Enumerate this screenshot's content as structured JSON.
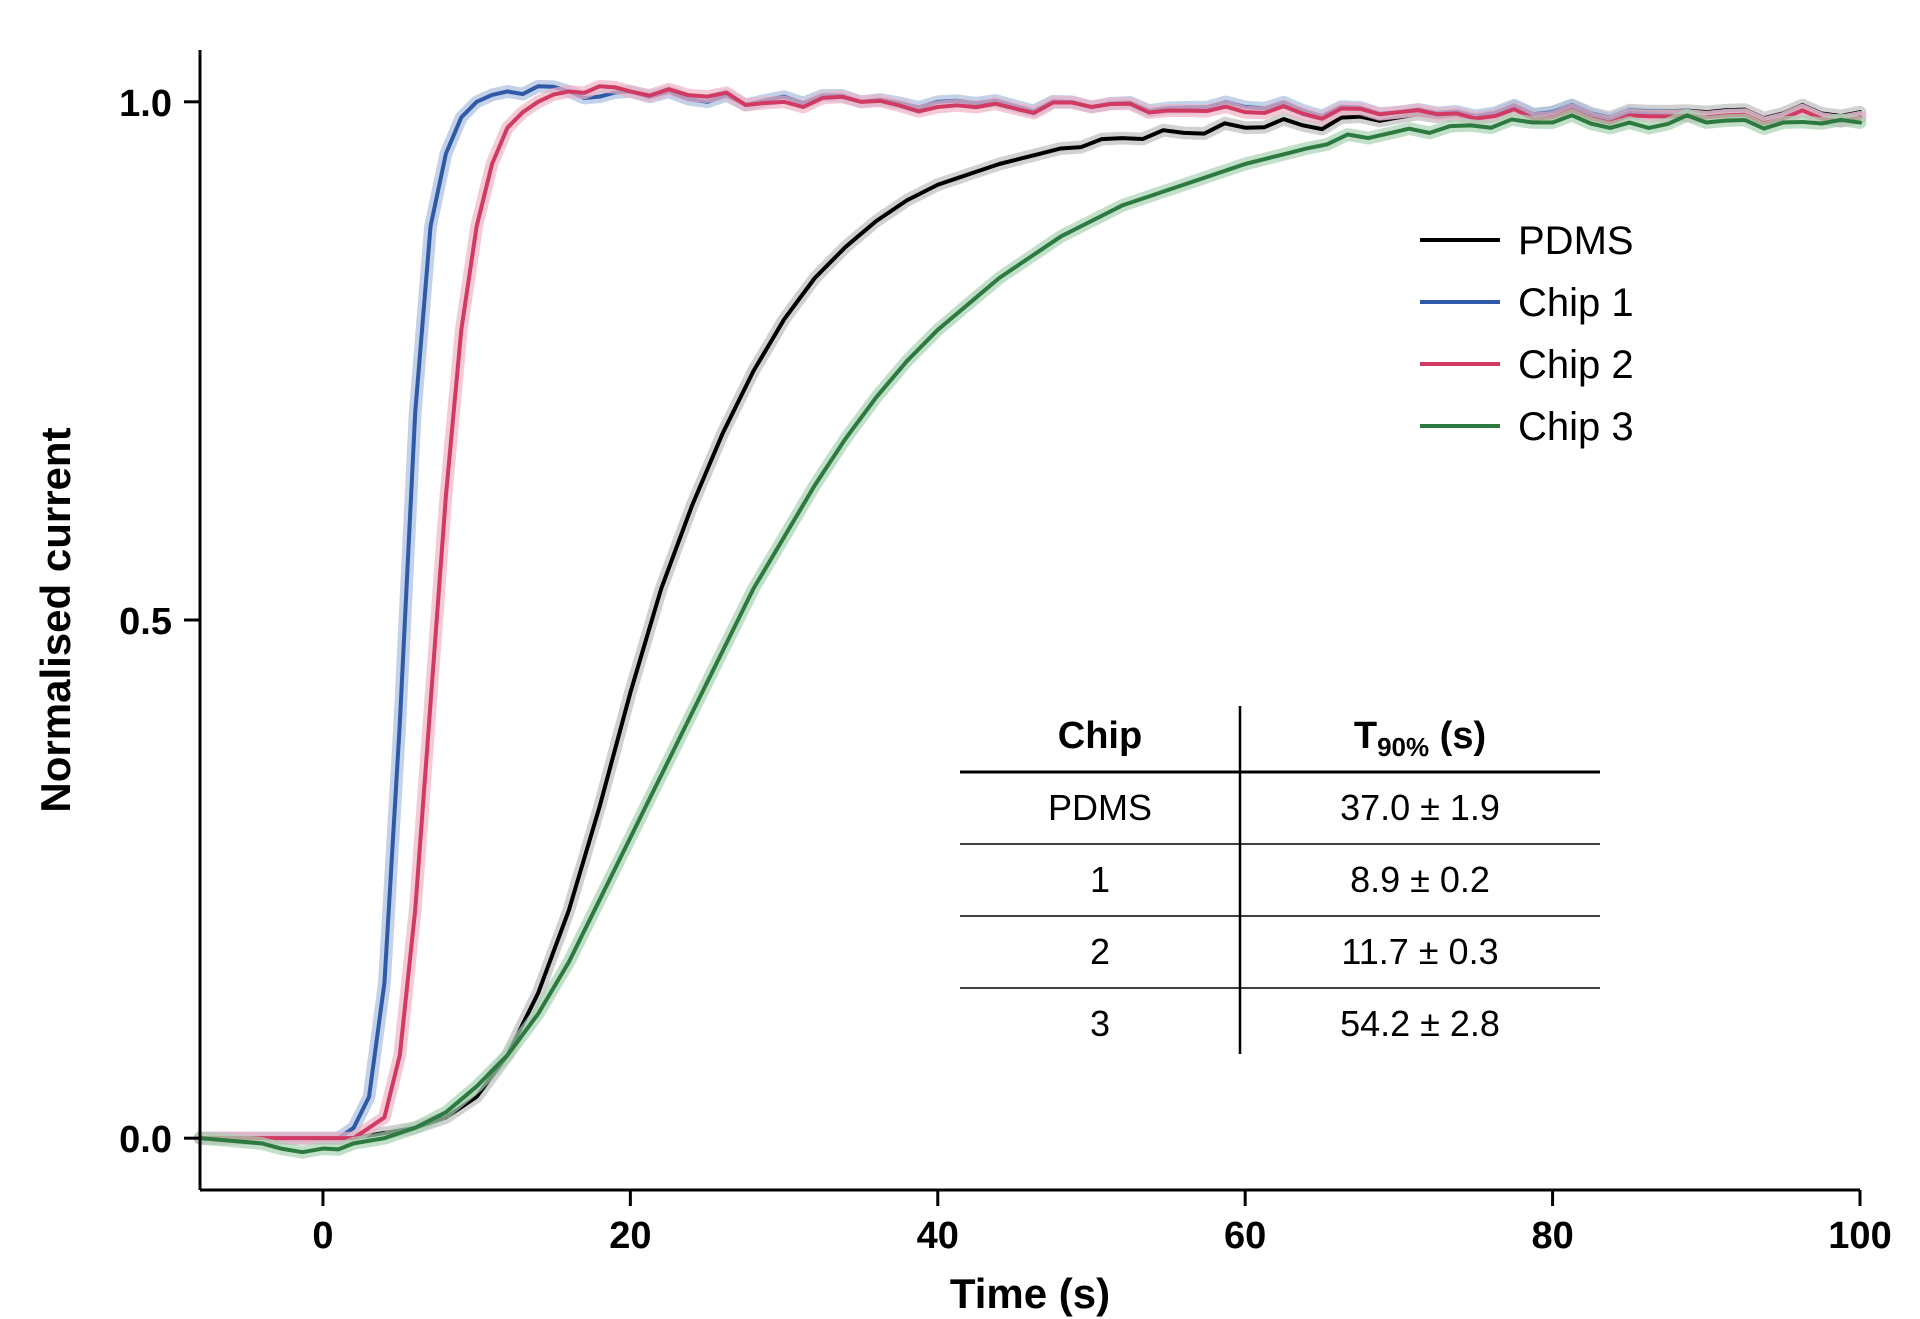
{
  "chart": {
    "type": "line",
    "background_color": "#ffffff",
    "xlabel": "Time (s)",
    "ylabel": "Normalised current",
    "label_fontsize": 42,
    "tick_fontsize": 38,
    "xlim": [
      -8,
      100
    ],
    "ylim": [
      -0.05,
      1.05
    ],
    "xticks": [
      0,
      20,
      40,
      60,
      80,
      100
    ],
    "yticks": [
      0.0,
      0.5,
      1.0
    ],
    "ytick_labels": [
      "0.0",
      "0.5",
      "1.0"
    ],
    "axis_color": "#000000",
    "axis_linewidth": 3,
    "line_width": 4,
    "series": [
      {
        "name": "PDMS",
        "color": "#000000",
        "shadow_color": "#bdbdbd",
        "points": [
          [
            -8,
            0.0
          ],
          [
            -4,
            0.0
          ],
          [
            0,
            0.0
          ],
          [
            2,
            0.0
          ],
          [
            4,
            0.005
          ],
          [
            6,
            0.01
          ],
          [
            8,
            0.02
          ],
          [
            10,
            0.04
          ],
          [
            12,
            0.08
          ],
          [
            14,
            0.14
          ],
          [
            16,
            0.22
          ],
          [
            18,
            0.32
          ],
          [
            20,
            0.43
          ],
          [
            22,
            0.53
          ],
          [
            24,
            0.61
          ],
          [
            26,
            0.68
          ],
          [
            28,
            0.74
          ],
          [
            30,
            0.79
          ],
          [
            32,
            0.83
          ],
          [
            34,
            0.86
          ],
          [
            36,
            0.885
          ],
          [
            38,
            0.905
          ],
          [
            40,
            0.92
          ],
          [
            44,
            0.94
          ],
          [
            48,
            0.955
          ],
          [
            52,
            0.965
          ],
          [
            56,
            0.97
          ],
          [
            60,
            0.975
          ],
          [
            70,
            0.985
          ],
          [
            80,
            0.99
          ],
          [
            90,
            0.99
          ],
          [
            100,
            0.99
          ]
        ]
      },
      {
        "name": "Chip 1",
        "color": "#2e5aa8",
        "shadow_color": "#a9bde0",
        "points": [
          [
            -8,
            0.0
          ],
          [
            -4,
            0.0
          ],
          [
            0,
            0.0
          ],
          [
            1,
            0.0
          ],
          [
            2,
            0.01
          ],
          [
            3,
            0.04
          ],
          [
            4,
            0.15
          ],
          [
            5,
            0.4
          ],
          [
            6,
            0.7
          ],
          [
            7,
            0.88
          ],
          [
            8,
            0.95
          ],
          [
            9,
            0.985
          ],
          [
            10,
            1.0
          ],
          [
            12,
            1.01
          ],
          [
            14,
            1.015
          ],
          [
            16,
            1.01
          ],
          [
            18,
            1.005
          ],
          [
            20,
            1.01
          ],
          [
            25,
            1.0
          ],
          [
            30,
            1.005
          ],
          [
            35,
            1.0
          ],
          [
            40,
            1.0
          ],
          [
            50,
            0.995
          ],
          [
            60,
            0.995
          ],
          [
            70,
            0.99
          ],
          [
            80,
            0.99
          ],
          [
            90,
            0.985
          ],
          [
            100,
            0.985
          ]
        ]
      },
      {
        "name": "Chip 2",
        "color": "#d13a62",
        "shadow_color": "#eeb3c4",
        "points": [
          [
            -8,
            0.0
          ],
          [
            -4,
            0.0
          ],
          [
            0,
            0.0
          ],
          [
            2,
            0.0
          ],
          [
            3,
            0.01
          ],
          [
            4,
            0.02
          ],
          [
            5,
            0.08
          ],
          [
            6,
            0.22
          ],
          [
            7,
            0.42
          ],
          [
            8,
            0.62
          ],
          [
            9,
            0.78
          ],
          [
            10,
            0.88
          ],
          [
            11,
            0.94
          ],
          [
            12,
            0.975
          ],
          [
            13,
            0.99
          ],
          [
            14,
            1.0
          ],
          [
            16,
            1.01
          ],
          [
            18,
            1.015
          ],
          [
            20,
            1.01
          ],
          [
            25,
            1.005
          ],
          [
            30,
            1.0
          ],
          [
            35,
            1.0
          ],
          [
            40,
            0.995
          ],
          [
            50,
            0.995
          ],
          [
            60,
            0.99
          ],
          [
            70,
            0.99
          ],
          [
            80,
            0.985
          ],
          [
            90,
            0.985
          ],
          [
            100,
            0.985
          ]
        ]
      },
      {
        "name": "Chip 3",
        "color": "#2c7a3f",
        "shadow_color": "#a8d3b2",
        "points": [
          [
            -8,
            0.0
          ],
          [
            -4,
            -0.005
          ],
          [
            0,
            -0.01
          ],
          [
            2,
            -0.005
          ],
          [
            4,
            0.0
          ],
          [
            6,
            0.01
          ],
          [
            8,
            0.025
          ],
          [
            10,
            0.05
          ],
          [
            12,
            0.08
          ],
          [
            14,
            0.12
          ],
          [
            16,
            0.17
          ],
          [
            18,
            0.23
          ],
          [
            20,
            0.29
          ],
          [
            22,
            0.35
          ],
          [
            24,
            0.41
          ],
          [
            26,
            0.47
          ],
          [
            28,
            0.53
          ],
          [
            30,
            0.58
          ],
          [
            32,
            0.63
          ],
          [
            34,
            0.675
          ],
          [
            36,
            0.715
          ],
          [
            38,
            0.75
          ],
          [
            40,
            0.78
          ],
          [
            42,
            0.805
          ],
          [
            44,
            0.83
          ],
          [
            46,
            0.85
          ],
          [
            48,
            0.87
          ],
          [
            50,
            0.885
          ],
          [
            52,
            0.9
          ],
          [
            54,
            0.91
          ],
          [
            56,
            0.92
          ],
          [
            58,
            0.93
          ],
          [
            60,
            0.94
          ],
          [
            64,
            0.955
          ],
          [
            68,
            0.965
          ],
          [
            72,
            0.97
          ],
          [
            76,
            0.975
          ],
          [
            80,
            0.98
          ],
          [
            85,
            0.98
          ],
          [
            90,
            0.98
          ],
          [
            95,
            0.98
          ],
          [
            100,
            0.98
          ]
        ]
      }
    ],
    "legend": {
      "items": [
        "PDMS",
        "Chip 1",
        "Chip 2",
        "Chip 3"
      ],
      "fontsize": 40,
      "line_length": 80
    },
    "table": {
      "header": [
        "Chip",
        "T₉₀% (s)"
      ],
      "header_plain": [
        "Chip",
        "T90% (s)"
      ],
      "rows": [
        [
          "PDMS",
          "37.0 ± 1.9"
        ],
        [
          "1",
          "8.9 ± 0.2"
        ],
        [
          "2",
          "11.7 ± 0.3"
        ],
        [
          "3",
          "54.2 ± 2.8"
        ]
      ],
      "fontsize_header": 38,
      "fontsize_cell": 36,
      "line_color": "#000000"
    }
  }
}
